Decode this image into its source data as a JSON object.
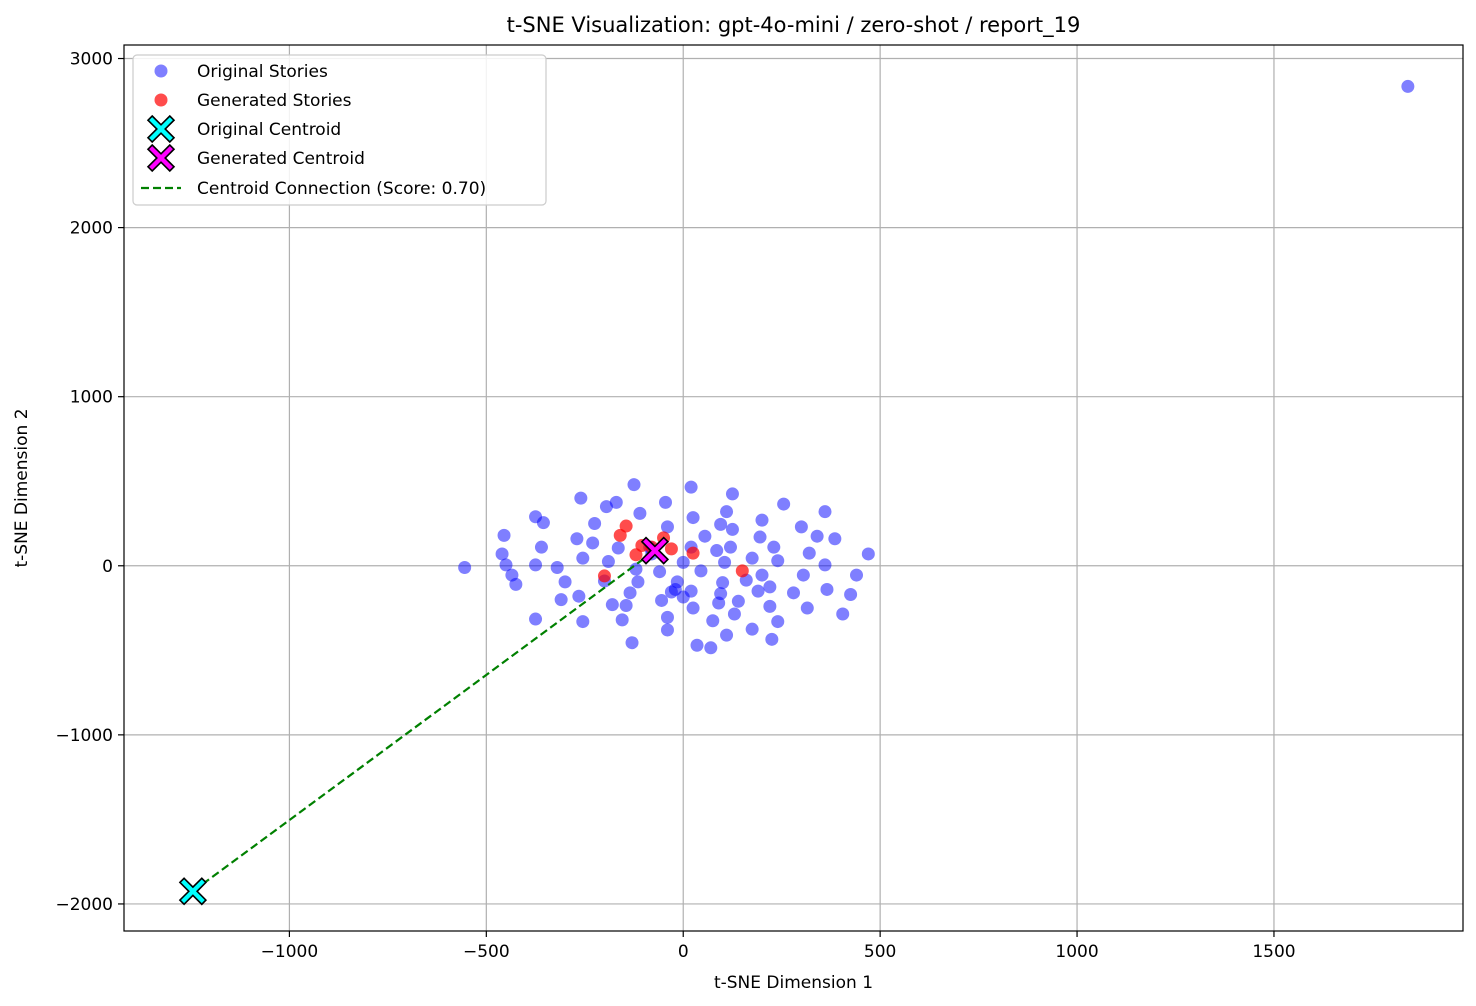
{
  "chart_data": {
    "type": "scatter",
    "title": "t-SNE Visualization: gpt-4o-mini / zero-shot / report_19",
    "xlabel": "t-SNE Dimension 1",
    "ylabel": "t-SNE Dimension 2",
    "xlim": [
      -1420,
      1980
    ],
    "ylim": [
      -2160,
      3080
    ],
    "xticks": [
      -1000,
      -500,
      0,
      500,
      1000,
      1500
    ],
    "yticks": [
      -2000,
      -1000,
      0,
      1000,
      2000,
      3000
    ],
    "xtick_labels": [
      "−1000",
      "−500",
      "0",
      "500",
      "1000",
      "1500"
    ],
    "ytick_labels": [
      "−2000",
      "−1000",
      "0",
      "1000",
      "2000",
      "3000"
    ],
    "grid": true,
    "legend_position": "top-left",
    "series": [
      {
        "name": "Original Stories",
        "color": "#0000ff",
        "points": [
          [
            -555,
            -10
          ],
          [
            -460,
            70
          ],
          [
            -455,
            180
          ],
          [
            -450,
            5
          ],
          [
            -435,
            -55
          ],
          [
            -425,
            -110
          ],
          [
            -375,
            290
          ],
          [
            -375,
            -315
          ],
          [
            -375,
            5
          ],
          [
            -360,
            110
          ],
          [
            -355,
            255
          ],
          [
            -320,
            -10
          ],
          [
            -300,
            -95
          ],
          [
            -310,
            -200
          ],
          [
            -270,
            160
          ],
          [
            -265,
            -180
          ],
          [
            -260,
            400
          ],
          [
            -255,
            45
          ],
          [
            -255,
            -330
          ],
          [
            -230,
            135
          ],
          [
            -225,
            250
          ],
          [
            -200,
            -90
          ],
          [
            -195,
            350
          ],
          [
            -190,
            25
          ],
          [
            -180,
            -230
          ],
          [
            -170,
            375
          ],
          [
            -165,
            105
          ],
          [
            -155,
            -320
          ],
          [
            -145,
            -235
          ],
          [
            -135,
            -160
          ],
          [
            -130,
            -455
          ],
          [
            -125,
            480
          ],
          [
            -120,
            -20
          ],
          [
            -115,
            -95
          ],
          [
            -110,
            310
          ],
          [
            -85,
            110
          ],
          [
            -80,
            70
          ],
          [
            -60,
            -35
          ],
          [
            -55,
            -205
          ],
          [
            -45,
            375
          ],
          [
            -40,
            230
          ],
          [
            -40,
            -305
          ],
          [
            -40,
            -380
          ],
          [
            -30,
            -155
          ],
          [
            -20,
            -140
          ],
          [
            -15,
            -95
          ],
          [
            0,
            20
          ],
          [
            0,
            -185
          ],
          [
            20,
            465
          ],
          [
            20,
            110
          ],
          [
            20,
            -150
          ],
          [
            25,
            285
          ],
          [
            25,
            -250
          ],
          [
            35,
            -470
          ],
          [
            45,
            -30
          ],
          [
            55,
            175
          ],
          [
            70,
            -485
          ],
          [
            75,
            -325
          ],
          [
            85,
            90
          ],
          [
            90,
            -220
          ],
          [
            95,
            -165
          ],
          [
            95,
            245
          ],
          [
            100,
            -100
          ],
          [
            105,
            20
          ],
          [
            110,
            320
          ],
          [
            110,
            -410
          ],
          [
            120,
            110
          ],
          [
            125,
            425
          ],
          [
            125,
            215
          ],
          [
            130,
            -285
          ],
          [
            140,
            -210
          ],
          [
            160,
            -85
          ],
          [
            175,
            45
          ],
          [
            175,
            -375
          ],
          [
            190,
            -150
          ],
          [
            195,
            170
          ],
          [
            200,
            270
          ],
          [
            200,
            -55
          ],
          [
            220,
            -125
          ],
          [
            220,
            -240
          ],
          [
            225,
            -435
          ],
          [
            230,
            110
          ],
          [
            240,
            30
          ],
          [
            240,
            -330
          ],
          [
            255,
            365
          ],
          [
            280,
            -160
          ],
          [
            300,
            230
          ],
          [
            305,
            -55
          ],
          [
            315,
            -250
          ],
          [
            320,
            75
          ],
          [
            340,
            175
          ],
          [
            360,
            320
          ],
          [
            360,
            5
          ],
          [
            365,
            -140
          ],
          [
            385,
            160
          ],
          [
            405,
            -285
          ],
          [
            425,
            -170
          ],
          [
            440,
            -55
          ],
          [
            470,
            70
          ],
          [
            1840,
            2835
          ]
        ]
      },
      {
        "name": "Generated Stories",
        "color": "#ff0000",
        "points": [
          [
            -200,
            -60
          ],
          [
            -160,
            180
          ],
          [
            -145,
            235
          ],
          [
            -120,
            65
          ],
          [
            -105,
            120
          ],
          [
            -80,
            110
          ],
          [
            -50,
            165
          ],
          [
            -30,
            100
          ],
          [
            25,
            75
          ],
          [
            150,
            -30
          ]
        ]
      },
      {
        "name": "Original Centroid",
        "color": "#00ffff",
        "points": [
          [
            -1245,
            -1925
          ]
        ]
      },
      {
        "name": "Generated Centroid",
        "color": "#ff00ff",
        "points": [
          [
            -72,
            90
          ]
        ]
      },
      {
        "name": "Centroid Connection (Score: 0.70)",
        "color": "#008000",
        "points": [
          [
            -1245,
            -1925
          ],
          [
            -72,
            90
          ]
        ]
      }
    ]
  }
}
